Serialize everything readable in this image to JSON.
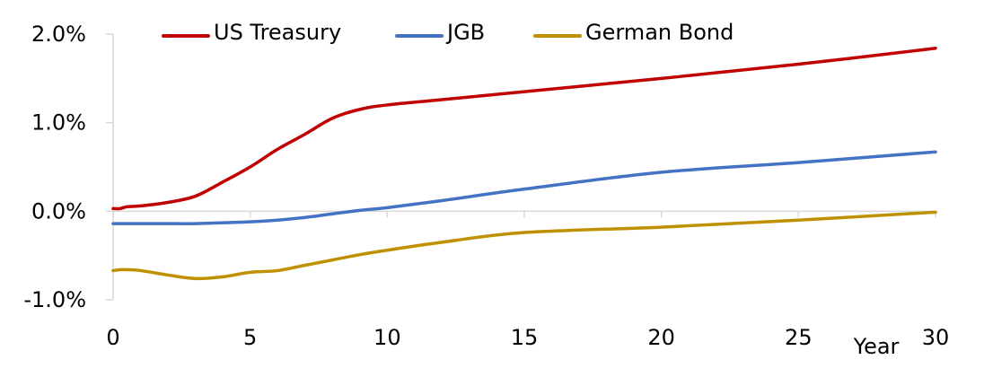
{
  "chart_data": {
    "type": "line",
    "title": "",
    "xlabel": "Year",
    "ylabel": "",
    "xlim": [
      0,
      30
    ],
    "ylim": [
      -1.0,
      2.0
    ],
    "x_ticks": [
      0,
      5,
      10,
      15,
      20,
      25,
      30
    ],
    "x_tick_labels": [
      "0",
      "5",
      "10",
      "15",
      "20",
      "25",
      "30"
    ],
    "y_ticks": [
      2.0,
      1.0,
      0.0,
      -1.0
    ],
    "y_tick_labels": [
      "2.0%",
      "1.0%",
      "0.0%",
      "-1.0%"
    ],
    "grid": false,
    "legend_position": "top",
    "series": [
      {
        "name": "US Treasury",
        "color": "#C00000",
        "x": [
          0,
          0.25,
          0.5,
          1,
          2,
          3,
          4,
          5,
          6,
          7,
          8,
          9,
          10,
          12,
          15,
          20,
          25,
          30
        ],
        "y": [
          0.03,
          0.03,
          0.05,
          0.06,
          0.1,
          0.17,
          0.33,
          0.5,
          0.7,
          0.87,
          1.05,
          1.15,
          1.2,
          1.26,
          1.35,
          1.5,
          1.66,
          1.84
        ]
      },
      {
        "name": "JGB",
        "color": "#4472C4",
        "x": [
          0,
          0.25,
          0.5,
          1,
          2,
          3,
          4,
          5,
          6,
          7,
          8,
          9,
          10,
          12,
          15,
          20,
          25,
          30
        ],
        "y": [
          -0.14,
          -0.14,
          -0.14,
          -0.14,
          -0.14,
          -0.14,
          -0.13,
          -0.12,
          -0.1,
          -0.07,
          -0.03,
          0.01,
          0.04,
          0.12,
          0.25,
          0.44,
          0.55,
          0.67
        ]
      },
      {
        "name": "German Bond",
        "color": "#BF9000",
        "x": [
          0,
          0.25,
          0.5,
          1,
          2,
          3,
          4,
          5,
          6,
          7,
          8,
          9,
          10,
          12,
          15,
          20,
          25,
          30
        ],
        "y": [
          -0.67,
          -0.66,
          -0.66,
          -0.67,
          -0.72,
          -0.76,
          -0.74,
          -0.69,
          -0.67,
          -0.61,
          -0.55,
          -0.49,
          -0.44,
          -0.35,
          -0.24,
          -0.18,
          -0.1,
          -0.01
        ]
      }
    ]
  }
}
